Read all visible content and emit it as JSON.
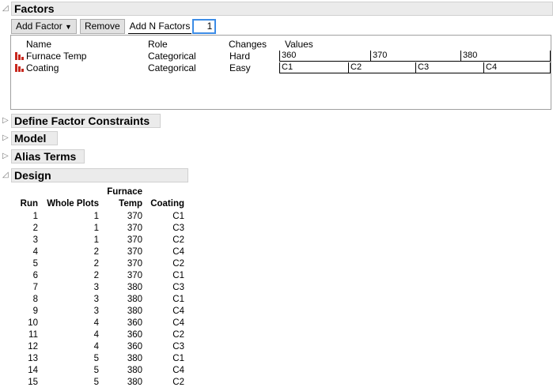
{
  "factors": {
    "title": "Factors",
    "add_factor": "Add Factor",
    "remove": "Remove",
    "add_n_label": "Add N Factors",
    "add_n_value": "1",
    "columns": [
      "Name",
      "Role",
      "Changes",
      "Values"
    ],
    "rows": [
      {
        "name": "Furnace Temp",
        "role": "Categorical",
        "changes": "Hard",
        "values": [
          "360",
          "370",
          "380"
        ]
      },
      {
        "name": "Coating",
        "role": "Categorical",
        "changes": "Easy",
        "values": [
          "C1",
          "C2",
          "C3",
          "C4"
        ]
      }
    ]
  },
  "sections": {
    "constraints": "Define Factor Constraints",
    "model": "Model",
    "alias": "Alias Terms",
    "design": "Design"
  },
  "design": {
    "headers": {
      "run": "Run",
      "whole_plots": "Whole Plots",
      "temp1": "Furnace",
      "temp2": "Temp",
      "coating": "Coating"
    },
    "rows": [
      [
        "1",
        "1",
        "370",
        "C1"
      ],
      [
        "2",
        "1",
        "370",
        "C3"
      ],
      [
        "3",
        "1",
        "370",
        "C2"
      ],
      [
        "4",
        "2",
        "370",
        "C4"
      ],
      [
        "5",
        "2",
        "370",
        "C2"
      ],
      [
        "6",
        "2",
        "370",
        "C1"
      ],
      [
        "7",
        "3",
        "380",
        "C3"
      ],
      [
        "8",
        "3",
        "380",
        "C1"
      ],
      [
        "9",
        "3",
        "380",
        "C4"
      ],
      [
        "10",
        "4",
        "360",
        "C4"
      ],
      [
        "11",
        "4",
        "360",
        "C2"
      ],
      [
        "12",
        "4",
        "360",
        "C3"
      ],
      [
        "13",
        "5",
        "380",
        "C1"
      ],
      [
        "14",
        "5",
        "380",
        "C4"
      ],
      [
        "15",
        "5",
        "380",
        "C2"
      ]
    ]
  },
  "colors": {
    "icon": "#c8281e",
    "focus": "#3c8ce6"
  }
}
